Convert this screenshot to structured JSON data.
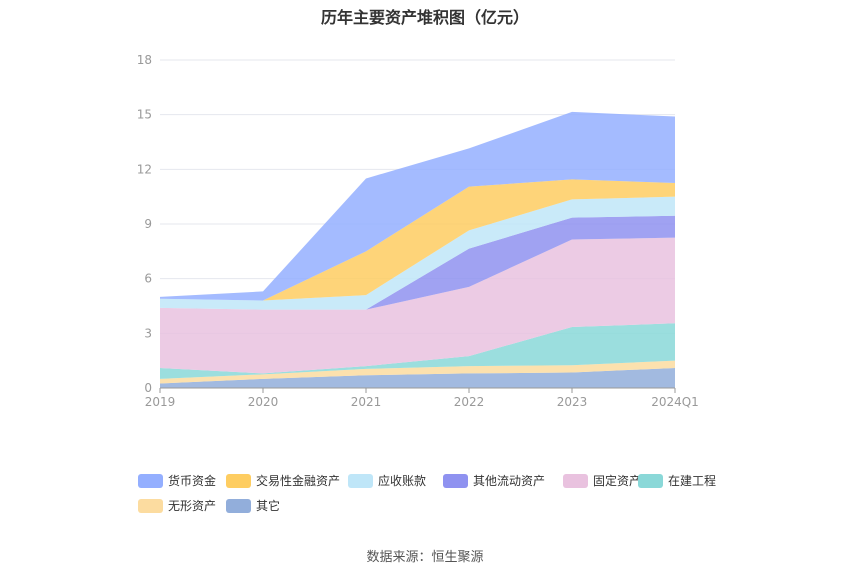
{
  "title": "历年主要资产堆积图（亿元）",
  "source": "数据来源：恒生聚源",
  "chart_data": {
    "type": "area",
    "stacked": true,
    "categories": [
      "2019",
      "2020",
      "2021",
      "2022",
      "2023",
      "2024Q1"
    ],
    "yticks": [
      0,
      3,
      6,
      9,
      12,
      15,
      18
    ],
    "ylim": [
      0,
      18
    ],
    "grid": true,
    "legend_position": "bottom",
    "series": [
      {
        "name": "其它",
        "color": "#92aedb",
        "values": [
          0.25,
          0.5,
          0.7,
          0.8,
          0.85,
          1.1
        ]
      },
      {
        "name": "无形资产",
        "color": "#fcdca0",
        "values": [
          0.25,
          0.25,
          0.35,
          0.4,
          0.4,
          0.4
        ]
      },
      {
        "name": "在建工程",
        "color": "#8ad8d8",
        "values": [
          0.6,
          0.05,
          0.15,
          0.55,
          2.1,
          2.05
        ]
      },
      {
        "name": "固定资产",
        "color": "#e9c2df",
        "values": [
          3.3,
          3.5,
          3.1,
          3.8,
          4.8,
          4.7
        ]
      },
      {
        "name": "其他流动资产",
        "color": "#8f92f0",
        "values": [
          0.0,
          0.0,
          0.0,
          2.1,
          1.2,
          1.2
        ]
      },
      {
        "name": "应收账款",
        "color": "#bfe6f8",
        "values": [
          0.5,
          0.5,
          0.8,
          1.0,
          1.0,
          1.05
        ]
      },
      {
        "name": "交易性金融资产",
        "color": "#fecd61",
        "values": [
          0.0,
          0.0,
          2.4,
          2.4,
          1.1,
          0.75
        ]
      },
      {
        "name": "货币资金",
        "color": "#94afff",
        "values": [
          0.1,
          0.5,
          4.0,
          2.1,
          3.7,
          3.65
        ]
      }
    ],
    "legend_order": [
      "货币资金",
      "交易性金融资产",
      "应收账款",
      "其他流动资产",
      "固定资产",
      "在建工程",
      "无形资产",
      "其它"
    ]
  }
}
